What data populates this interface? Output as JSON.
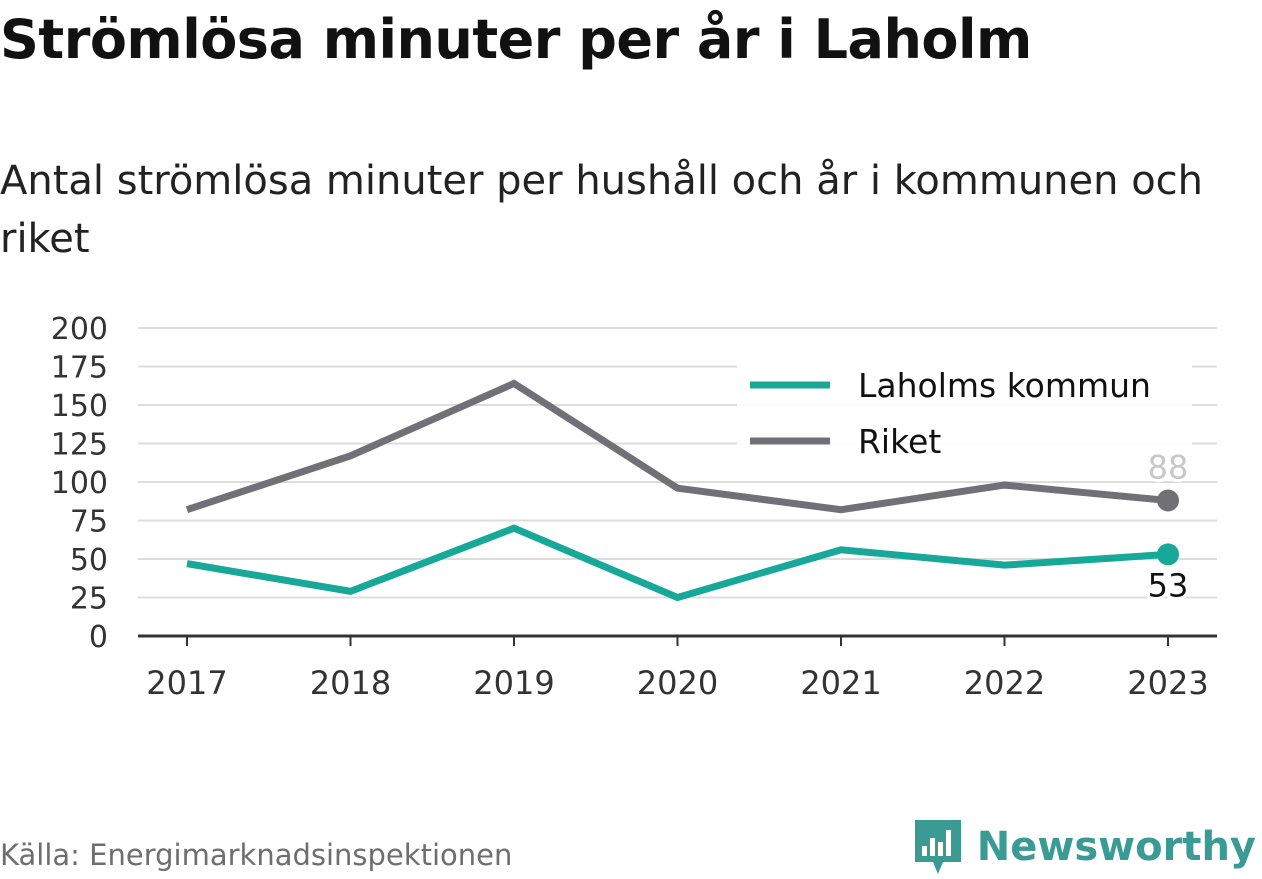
{
  "title": "Strömlösa minuter per år i Laholm",
  "subtitle": "Antal strömlösa minuter per hushåll och år i kommunen och riket",
  "source": "Källa: Energimarknadsinspektionen",
  "brand": "Newsworthy",
  "colors": {
    "laholm": "#17a89a",
    "riket": "#707076",
    "brand": "#3a9a94"
  },
  "chart_data": {
    "type": "line",
    "x": [
      "2017",
      "2018",
      "2019",
      "2020",
      "2021",
      "2022",
      "2023"
    ],
    "ylim": [
      0,
      200
    ],
    "yticks": [
      "0",
      "25",
      "50",
      "75",
      "100",
      "125",
      "150",
      "175",
      "200"
    ],
    "grid": true,
    "legend_position": "top-right",
    "series": [
      {
        "name": "Laholms kommun",
        "color": "#17a89a",
        "values": [
          47,
          29,
          70,
          25,
          56,
          46,
          53
        ],
        "end_label": "53"
      },
      {
        "name": "Riket",
        "color": "#707076",
        "values": [
          82,
          117,
          164,
          96,
          82,
          98,
          88
        ],
        "end_label": "88"
      }
    ]
  }
}
